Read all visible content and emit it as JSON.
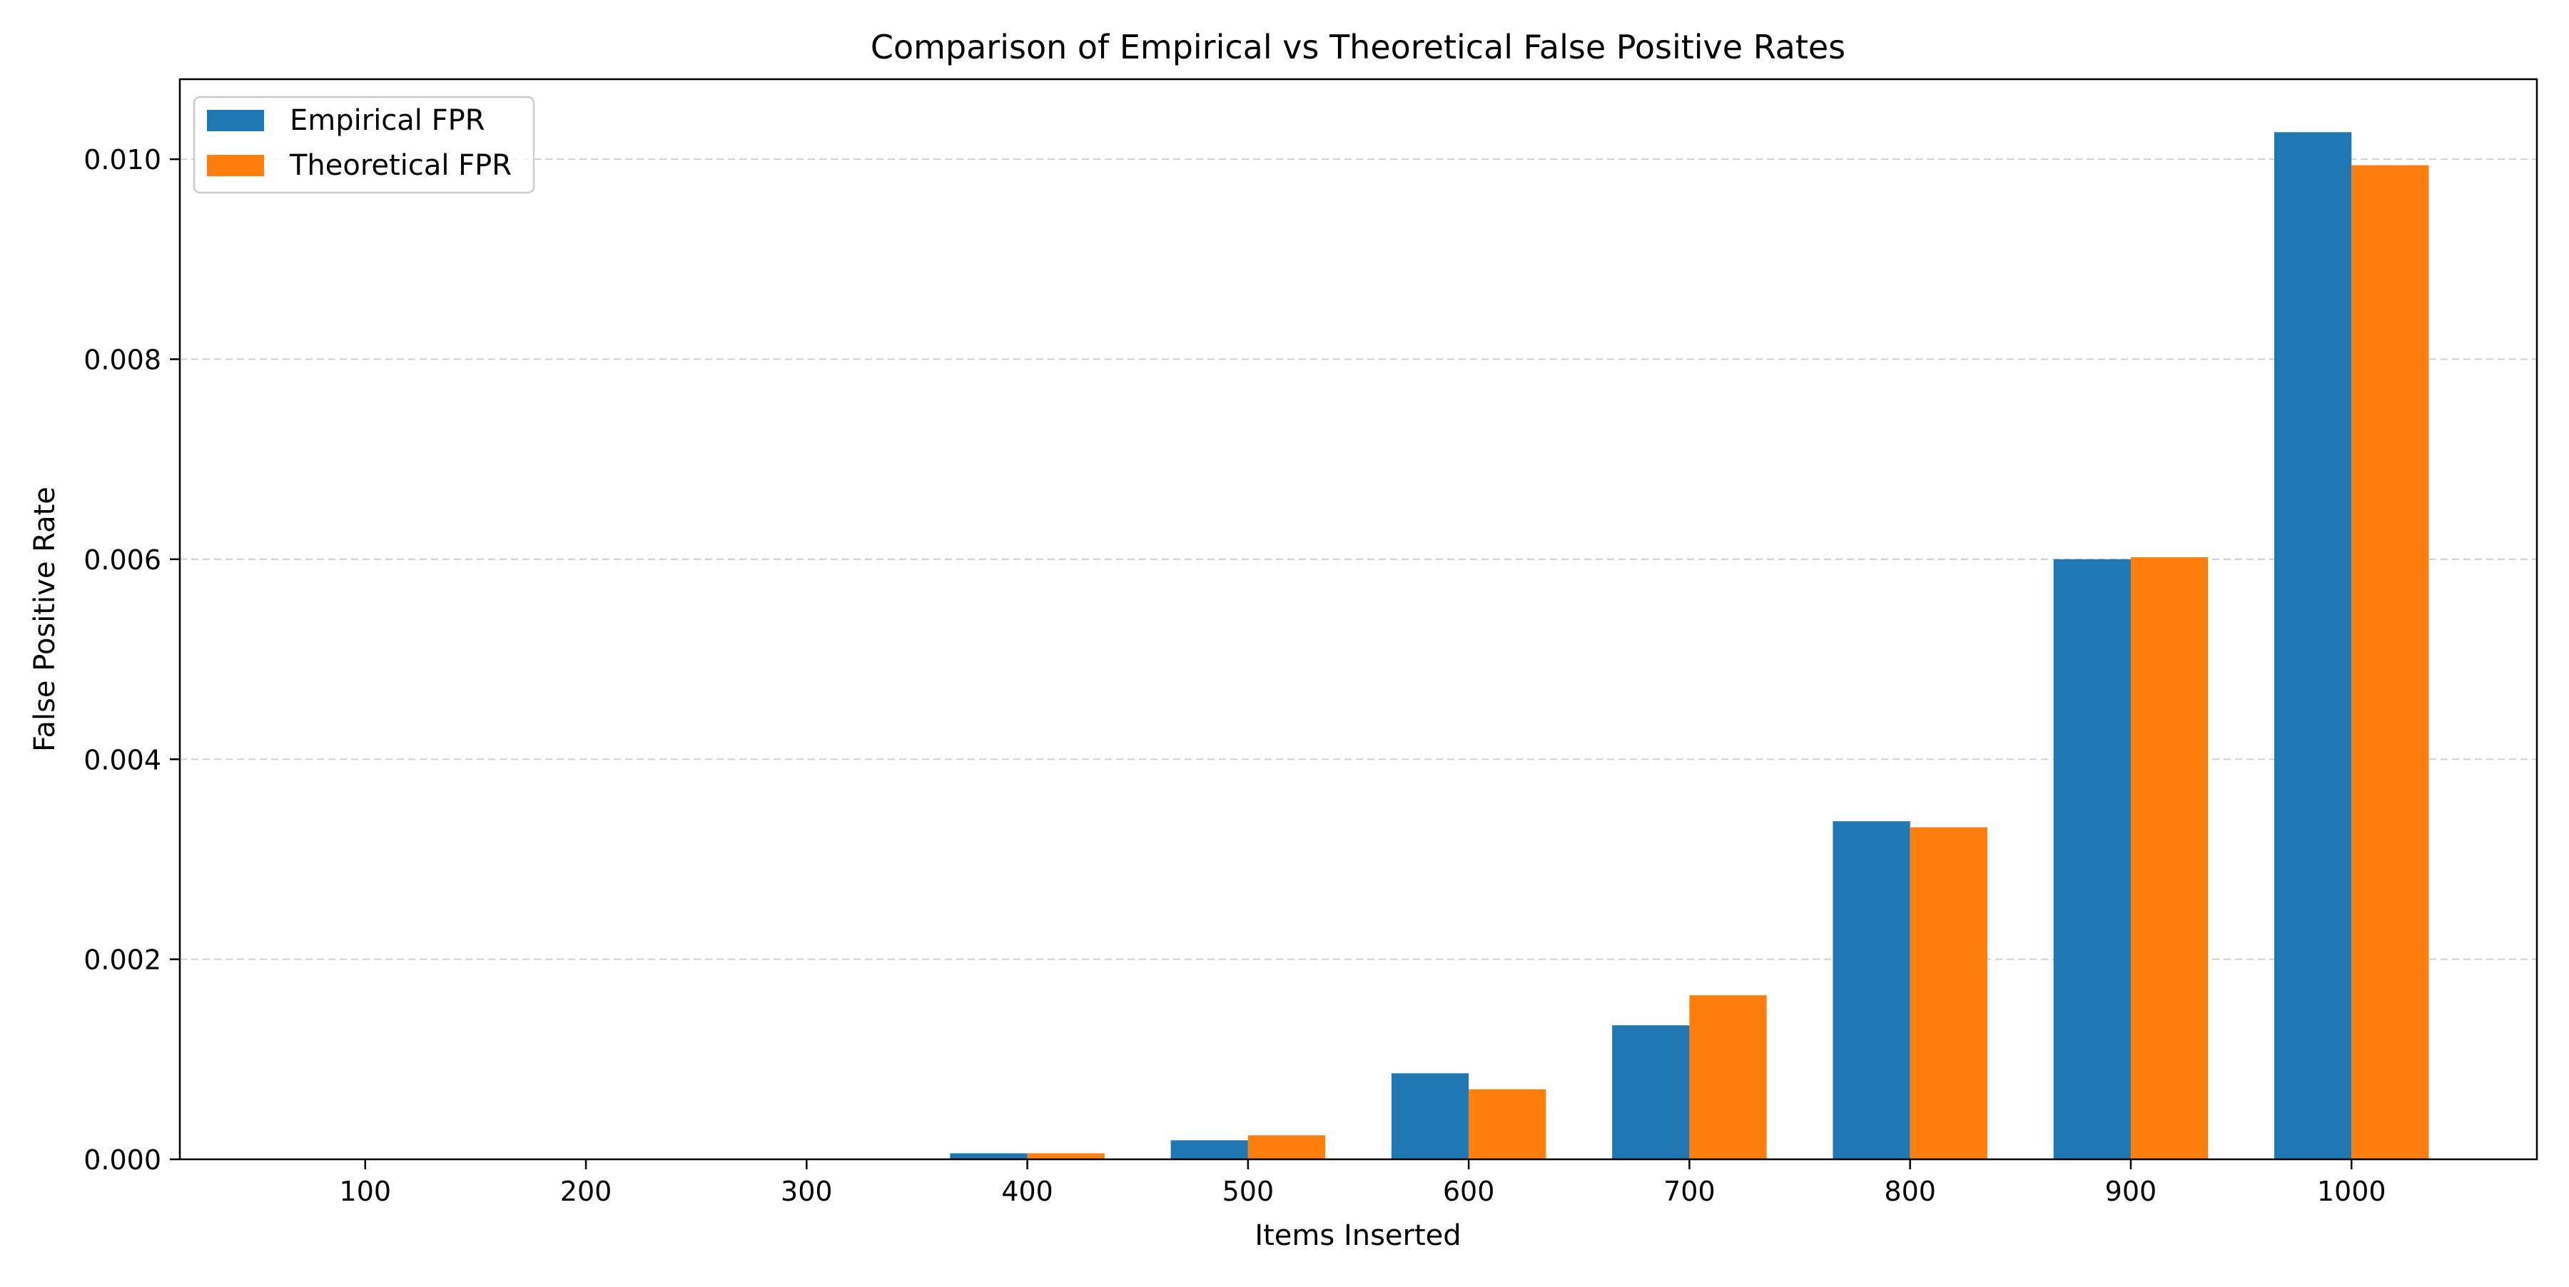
{
  "chart_data": {
    "type": "bar",
    "title": "Comparison of Empirical vs Theoretical False Positive Rates",
    "xlabel": "Items Inserted",
    "ylabel": "False Positive Rate",
    "categories": [
      "100",
      "200",
      "300",
      "400",
      "500",
      "600",
      "700",
      "800",
      "900",
      "1000"
    ],
    "series": [
      {
        "name": "Empirical FPR",
        "color": "#1f77b4",
        "values": [
          0.0,
          0.0,
          0.0,
          6e-05,
          0.00019,
          0.00086,
          0.00134,
          0.00338,
          0.006,
          0.01027
        ]
      },
      {
        "name": "Theoretical FPR",
        "color": "#ff7f0e",
        "values": [
          0.0,
          0.0,
          1e-06,
          6e-05,
          0.00024,
          0.0007,
          0.00164,
          0.00332,
          0.00602,
          0.00994
        ]
      }
    ],
    "ylim": [
      0,
      0.0108
    ],
    "yticks": [
      0.0,
      0.002,
      0.004,
      0.006,
      0.008,
      0.01
    ],
    "ytick_labels": [
      "0.000",
      "0.002",
      "0.004",
      "0.006",
      "0.008",
      "0.010"
    ],
    "grid": "y-dashed",
    "legend_position": "upper-left"
  }
}
